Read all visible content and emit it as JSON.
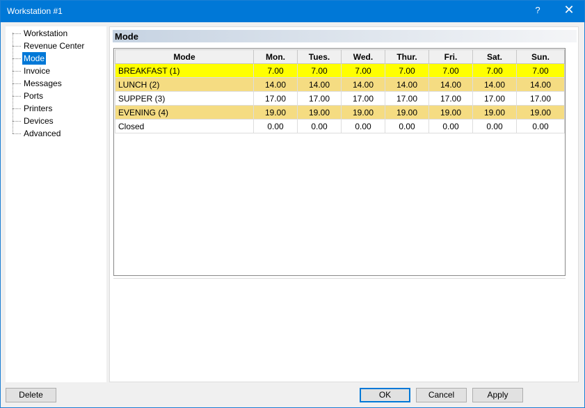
{
  "window": {
    "title": "Workstation #1",
    "help": "?",
    "close": "✕"
  },
  "tree": {
    "items": [
      {
        "label": "Workstation",
        "selected": false
      },
      {
        "label": "Revenue Center",
        "selected": false
      },
      {
        "label": "Mode",
        "selected": true
      },
      {
        "label": "Invoice",
        "selected": false
      },
      {
        "label": "Messages",
        "selected": false
      },
      {
        "label": "Ports",
        "selected": false
      },
      {
        "label": "Printers",
        "selected": false
      },
      {
        "label": "Devices",
        "selected": false
      },
      {
        "label": "Advanced",
        "selected": false
      }
    ]
  },
  "panel": {
    "title": "Mode"
  },
  "grid": {
    "columns": [
      "Mode",
      "Mon.",
      "Tues.",
      "Wed.",
      "Thur.",
      "Fri.",
      "Sat.",
      "Sun."
    ],
    "rows": [
      {
        "color": "#ffff00",
        "cells": [
          "BREAKFAST (1)",
          "7.00",
          "7.00",
          "7.00",
          "7.00",
          "7.00",
          "7.00",
          "7.00"
        ]
      },
      {
        "color": "#f5dc82",
        "cells": [
          "LUNCH (2)",
          "14.00",
          "14.00",
          "14.00",
          "14.00",
          "14.00",
          "14.00",
          "14.00"
        ]
      },
      {
        "color": "#ffffff",
        "cells": [
          "SUPPER (3)",
          "17.00",
          "17.00",
          "17.00",
          "17.00",
          "17.00",
          "17.00",
          "17.00"
        ]
      },
      {
        "color": "#f5dc82",
        "cells": [
          "EVENING (4)",
          "19.00",
          "19.00",
          "19.00",
          "19.00",
          "19.00",
          "19.00",
          "19.00"
        ]
      },
      {
        "color": "#ffffff",
        "cells": [
          "Closed",
          "0.00",
          "0.00",
          "0.00",
          "0.00",
          "0.00",
          "0.00",
          "0.00"
        ]
      }
    ]
  },
  "buttons": {
    "delete": "Delete",
    "ok": "OK",
    "cancel": "Cancel",
    "apply": "Apply"
  }
}
